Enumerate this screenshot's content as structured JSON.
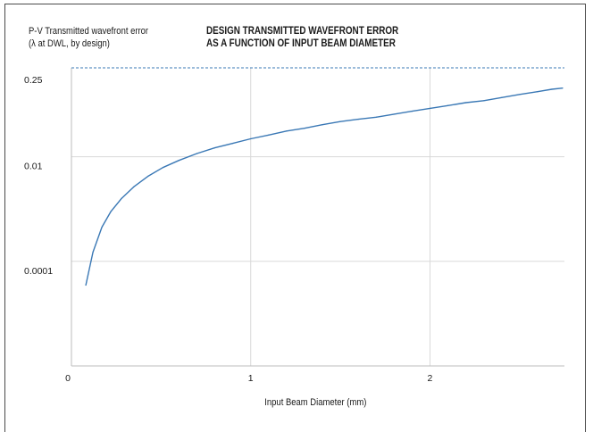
{
  "chart_data": {
    "type": "line",
    "title": [
      "DESIGN TRANSMITTED WAVEFRONT ERROR",
      "AS A FUNCTION OF INPUT BEAM DIAMETER"
    ],
    "ylabel": [
      "P-V Transmitted wavefront error",
      "(λ at DWL, by design)"
    ],
    "xlabel": "Input Beam Diameter (mm)",
    "x_ticks": [
      0,
      1,
      2
    ],
    "x_tick_labels": [
      "0",
      "1",
      "2"
    ],
    "xlim": [
      0,
      2.75
    ],
    "y_scale": "log",
    "y_ticks": [
      0.0001,
      0.01,
      0.25
    ],
    "y_tick_labels": [
      "0.0001",
      "0.01",
      "0.25"
    ],
    "ylim": [
      1e-06,
      0.5
    ],
    "reference_line": {
      "y": 0.5,
      "style": "dashed"
    },
    "grid": true,
    "series": [
      {
        "color": "#3a78b5",
        "x": [
          0.08,
          0.12,
          0.17,
          0.22,
          0.28,
          0.35,
          0.43,
          0.51,
          0.6,
          0.7,
          0.8,
          0.9,
          1.0,
          1.1,
          1.2,
          1.3,
          1.4,
          1.5,
          1.6,
          1.7,
          1.8,
          1.9,
          2.0,
          2.1,
          2.2,
          2.3,
          2.4,
          2.5,
          2.6,
          2.68,
          2.74
        ],
        "y": [
          3.5e-05,
          0.00015,
          0.00045,
          0.0009,
          0.0016,
          0.0027,
          0.0043,
          0.0062,
          0.0085,
          0.0115,
          0.0148,
          0.018,
          0.022,
          0.026,
          0.031,
          0.035,
          0.041,
          0.047,
          0.052,
          0.057,
          0.065,
          0.074,
          0.084,
          0.095,
          0.108,
          0.118,
          0.135,
          0.155,
          0.175,
          0.195,
          0.205
        ]
      }
    ]
  }
}
